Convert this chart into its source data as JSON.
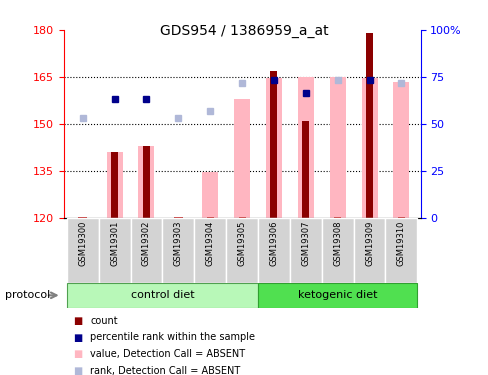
{
  "title": "GDS954 / 1386959_a_at",
  "samples": [
    "GSM19300",
    "GSM19301",
    "GSM19302",
    "GSM19303",
    "GSM19304",
    "GSM19305",
    "GSM19306",
    "GSM19307",
    "GSM19308",
    "GSM19309",
    "GSM19310"
  ],
  "red_bars": [
    null,
    141,
    143,
    null,
    null,
    null,
    167,
    151,
    null,
    179,
    null
  ],
  "pink_tops": [
    120.5,
    141,
    143,
    120.3,
    134.5,
    158,
    164.5,
    165,
    165,
    164.5,
    163.5
  ],
  "blue_squares": [
    null,
    158,
    158,
    null,
    null,
    null,
    164,
    160,
    null,
    164,
    null
  ],
  "lavender_squares": [
    152,
    null,
    null,
    152,
    154,
    163,
    null,
    null,
    164,
    null,
    163
  ],
  "ylim_left": [
    120,
    180
  ],
  "ylim_right": [
    0,
    100
  ],
  "yticks_left": [
    120,
    135,
    150,
    165,
    180
  ],
  "yticks_right": [
    0,
    25,
    50,
    75,
    100
  ],
  "legend_items": [
    "count",
    "percentile rank within the sample",
    "value, Detection Call = ABSENT",
    "rank, Detection Call = ABSENT"
  ],
  "legend_colors": [
    "#8b0000",
    "#00008b",
    "#ffb6c1",
    "#b0b8d8"
  ],
  "ctrl_color_light": "#b8f0b8",
  "ctrl_color_dark": "#50c050",
  "keto_color_light": "#50e050",
  "keto_color_dark": "#30a030"
}
